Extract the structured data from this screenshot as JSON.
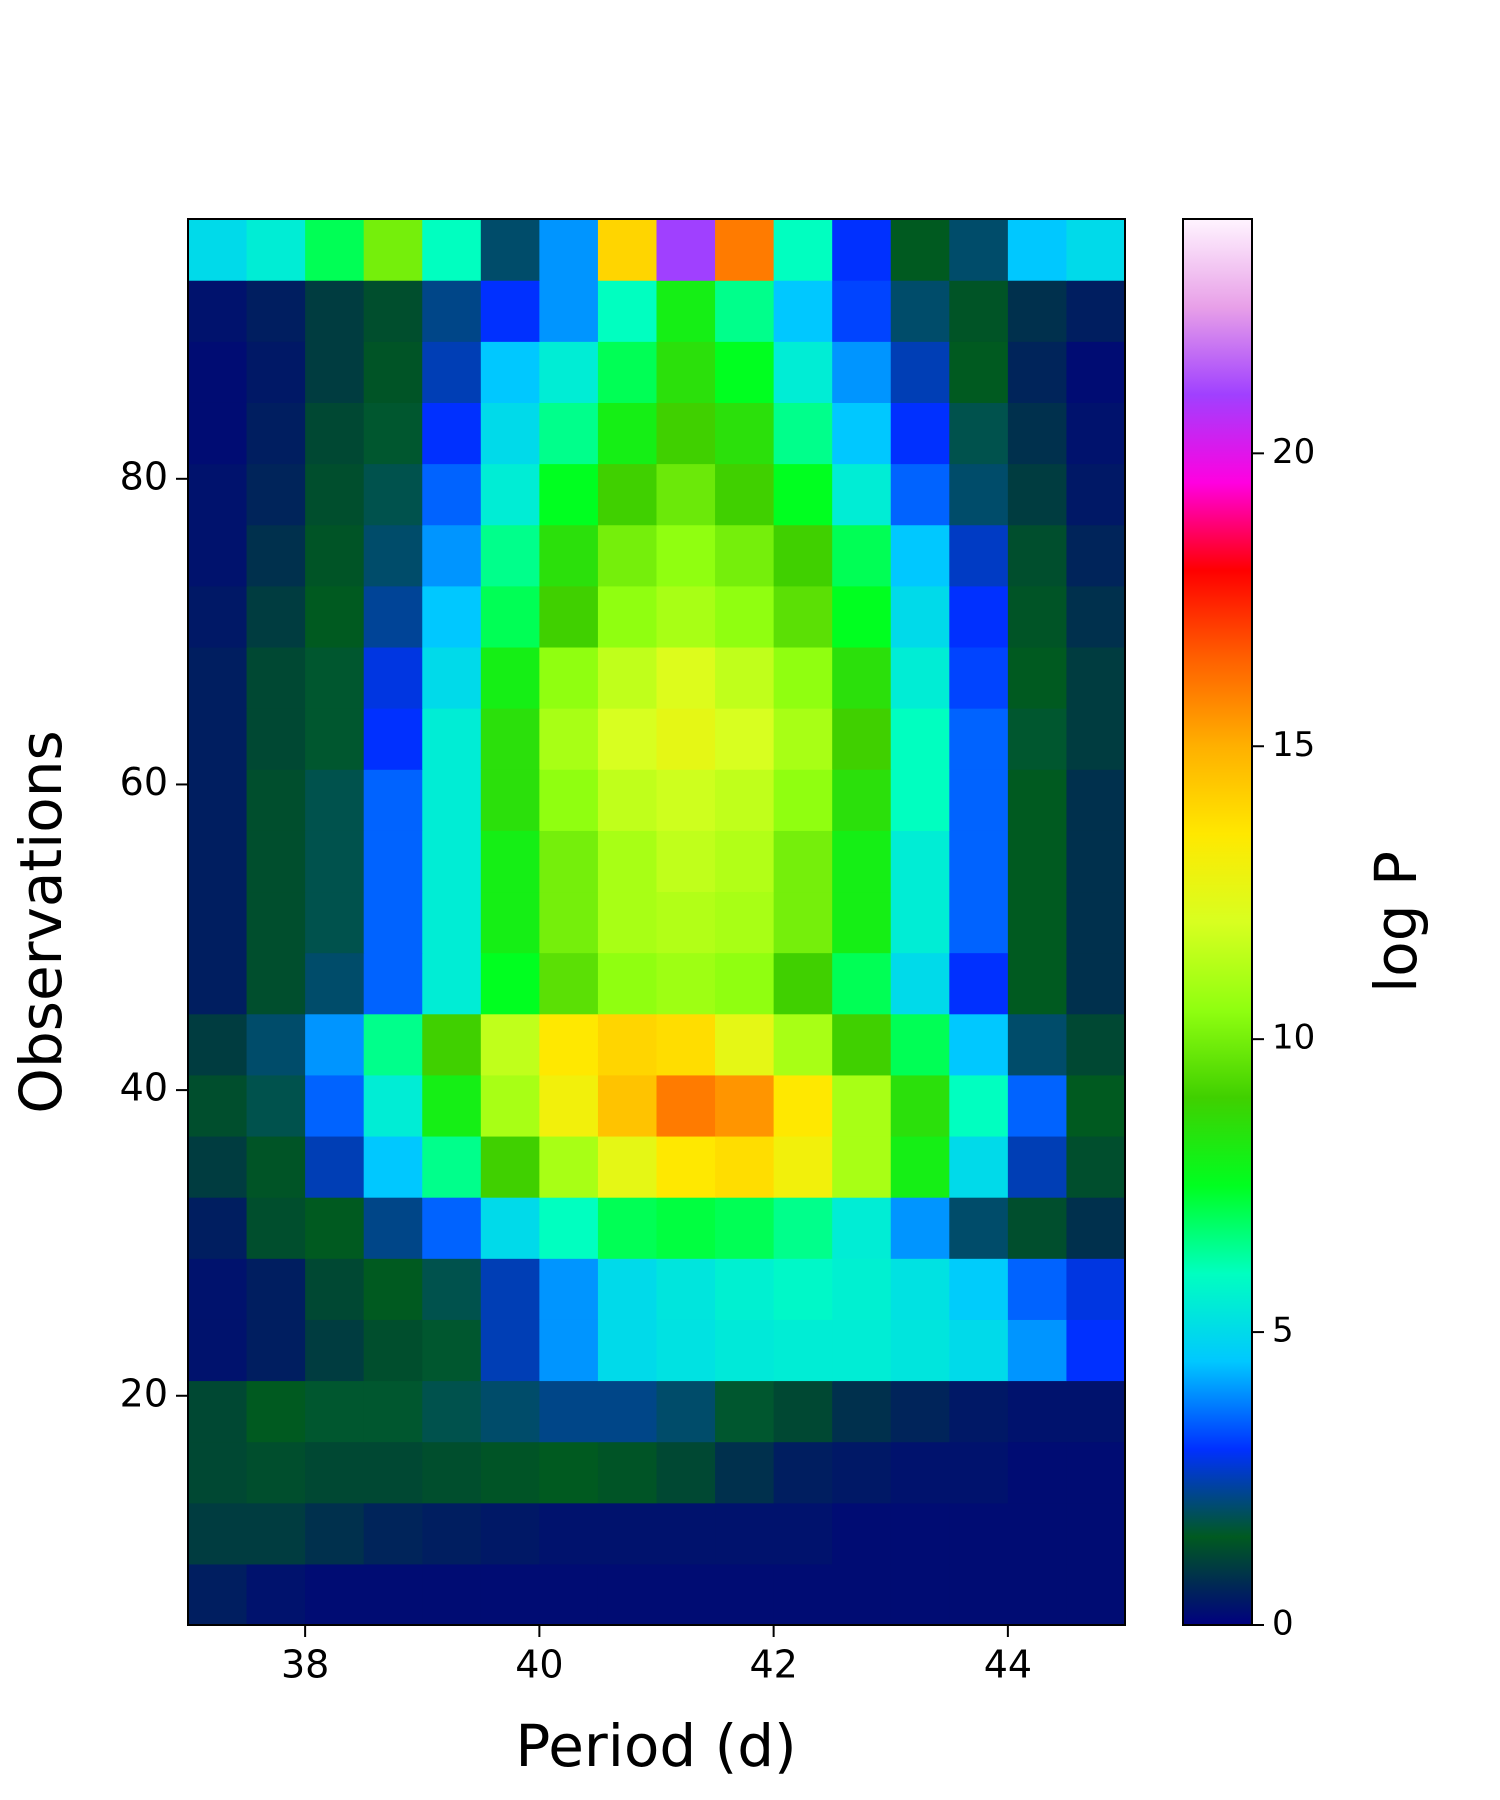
{
  "chart_data": {
    "type": "heatmap",
    "xlabel": "Period (d)",
    "ylabel": "Observations",
    "colorbar_label": "log P",
    "xlim": [
      37,
      45
    ],
    "ylim": [
      5,
      97
    ],
    "xticks": [
      38,
      40,
      42,
      44
    ],
    "yticks": [
      20,
      40,
      60,
      80
    ],
    "zlim": [
      0,
      24
    ],
    "zticks": [
      0,
      5,
      10,
      15,
      20
    ],
    "colormap": [
      "#000080",
      "#005a20",
      "#0030ff",
      "#00c8ff",
      "#00ffc0",
      "#00ff20",
      "#40d000",
      "#90ff10",
      "#d8ff20",
      "#ffe800",
      "#ffb000",
      "#ff6000",
      "#ff0000",
      "#ff00e0",
      "#a040ff",
      "#e8a0e8",
      "#fff4ff"
    ],
    "xbins": [
      37,
      37.5,
      38,
      38.5,
      39,
      39.5,
      40,
      40.5,
      41,
      41.5,
      42,
      42.5,
      43,
      43.5,
      44,
      44.5,
      45
    ],
    "ybins": [
      5,
      9,
      13,
      17,
      21,
      25,
      29,
      33,
      37,
      41,
      45,
      49,
      53,
      57,
      61,
      65,
      69,
      73,
      77,
      81,
      85,
      89,
      93,
      97
    ],
    "z": [
      [
        0.5,
        0.3,
        0.2,
        0.2,
        0.2,
        0.2,
        0.2,
        0.2,
        0.2,
        0.2,
        0.2,
        0.2,
        0.2,
        0.2,
        0.2,
        0.2
      ],
      [
        1,
        1,
        0.8,
        0.6,
        0.5,
        0.4,
        0.3,
        0.3,
        0.3,
        0.3,
        0.3,
        0.2,
        0.2,
        0.2,
        0.2,
        0.2
      ],
      [
        1.2,
        1.3,
        1.2,
        1.2,
        1.3,
        1.4,
        1.5,
        1.4,
        1.2,
        0.8,
        0.5,
        0.4,
        0.3,
        0.3,
        0.2,
        0.2
      ],
      [
        1.2,
        1.5,
        1.6,
        1.6,
        1.8,
        2,
        2.2,
        2.2,
        2,
        1.6,
        1.2,
        0.8,
        0.6,
        0.4,
        0.3,
        0.3
      ],
      [
        0.3,
        0.5,
        1,
        1.3,
        1.6,
        2.5,
        4,
        5,
        5.2,
        5.4,
        5.5,
        5.5,
        5.3,
        5,
        4,
        3
      ],
      [
        0.3,
        0.5,
        1.2,
        1.5,
        1.8,
        2.5,
        4,
        5,
        5.3,
        5.6,
        5.8,
        5.6,
        5.2,
        4.6,
        3.5,
        2.8
      ],
      [
        0.5,
        1.3,
        1.5,
        2.2,
        3.5,
        5,
        6,
        7,
        7.2,
        7,
        6.5,
        5.5,
        4,
        2,
        1.3,
        0.8
      ],
      [
        1,
        1.4,
        2.5,
        4.5,
        6.5,
        9,
        11,
        12.5,
        13.5,
        13.8,
        13,
        11,
        8,
        5,
        2.5,
        1.3
      ],
      [
        1.3,
        1.8,
        3.5,
        5.5,
        8,
        11,
        13,
        14.5,
        16,
        15.5,
        13.5,
        11,
        8.5,
        6,
        3.5,
        1.5
      ],
      [
        1,
        2,
        4,
        6.5,
        9,
        11.5,
        13.5,
        14,
        13.8,
        12.5,
        11,
        9,
        7,
        4.5,
        2,
        1.2
      ],
      [
        0.5,
        1.3,
        2,
        3.5,
        5.5,
        7.5,
        9.5,
        10.5,
        10.8,
        10.5,
        9,
        7,
        5,
        3,
        1.5,
        0.8
      ],
      [
        0.5,
        1.3,
        1.8,
        3.5,
        5.5,
        8,
        10,
        11,
        11.2,
        11,
        10,
        8,
        5.5,
        3.5,
        1.5,
        0.8
      ],
      [
        0.5,
        1.3,
        1.8,
        3.5,
        5.5,
        8,
        10,
        11,
        11.5,
        11.2,
        10,
        8,
        5.5,
        3.5,
        1.5,
        0.8
      ],
      [
        0.5,
        1.3,
        1.8,
        3.5,
        5.5,
        8.5,
        10.5,
        11.5,
        11.8,
        11.5,
        10.5,
        8.5,
        6,
        3.5,
        1.5,
        0.8
      ],
      [
        0.5,
        1.2,
        1.6,
        3,
        5.5,
        8.5,
        11,
        12,
        12.5,
        12,
        11,
        9,
        6,
        3.5,
        1.6,
        1
      ],
      [
        0.5,
        1.2,
        1.6,
        2.8,
        5,
        8,
        10.5,
        11.5,
        12.2,
        11.5,
        10.5,
        8.5,
        5.5,
        3.2,
        1.5,
        1
      ],
      [
        0.4,
        1,
        1.5,
        2.3,
        4.5,
        7,
        9,
        10.5,
        11,
        10.5,
        9.5,
        7.5,
        5,
        3,
        1.4,
        0.8
      ],
      [
        0.3,
        0.8,
        1.4,
        2,
        4,
        6.5,
        8.5,
        10,
        10.5,
        10,
        9,
        7,
        4.5,
        2.6,
        1.3,
        0.6
      ],
      [
        0.3,
        0.6,
        1.3,
        1.8,
        3.5,
        5.5,
        7.5,
        9,
        9.8,
        9,
        7.5,
        5.5,
        3.5,
        2,
        1,
        0.4
      ],
      [
        0.2,
        0.5,
        1.2,
        1.6,
        3,
        5,
        6.5,
        8,
        9,
        8.5,
        6.5,
        4.5,
        3,
        1.8,
        0.8,
        0.3
      ],
      [
        0.2,
        0.4,
        1,
        1.4,
        2.5,
        4.5,
        5.5,
        7,
        8.5,
        7.5,
        5.5,
        4,
        2.5,
        1.5,
        0.6,
        0.2
      ],
      [
        0.3,
        0.5,
        1,
        1.3,
        2.2,
        3,
        4,
        6,
        8,
        6.5,
        4.5,
        3.2,
        2,
        1.4,
        0.8,
        0.5
      ],
      [
        5,
        5.5,
        7,
        10,
        6,
        2,
        4,
        14,
        21,
        16,
        6,
        3,
        1.5,
        2,
        4.5,
        5
      ]
    ]
  }
}
